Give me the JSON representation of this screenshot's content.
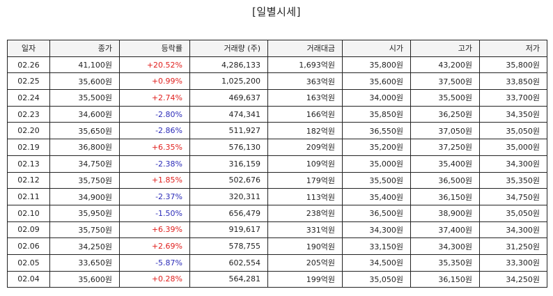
{
  "title": "[일별시세]",
  "colors": {
    "up": "#e0201e",
    "down": "#2b2bb8"
  },
  "columns": [
    "일자",
    "종가",
    "등락률",
    "거래량 (주)",
    "거래대금",
    "시가",
    "고가",
    "저가"
  ],
  "rows": [
    {
      "date": "02.26",
      "close": "41,100원",
      "change": "+20.52%",
      "dir": "up",
      "volume": "4,286,133",
      "amount": "1,693억원",
      "open": "35,800원",
      "high": "43,200원",
      "low": "35,800원"
    },
    {
      "date": "02.25",
      "close": "35,600원",
      "change": "+0.99%",
      "dir": "up",
      "volume": "1,025,200",
      "amount": "363억원",
      "open": "35,600원",
      "high": "37,500원",
      "low": "33,850원"
    },
    {
      "date": "02.24",
      "close": "35,500원",
      "change": "+2.74%",
      "dir": "up",
      "volume": "469,637",
      "amount": "163억원",
      "open": "34,000원",
      "high": "35,500원",
      "low": "33,700원"
    },
    {
      "date": "02.23",
      "close": "34,600원",
      "change": "-2.80%",
      "dir": "down",
      "volume": "474,341",
      "amount": "166억원",
      "open": "35,850원",
      "high": "36,250원",
      "low": "34,350원"
    },
    {
      "date": "02.20",
      "close": "35,650원",
      "change": "-2.86%",
      "dir": "down",
      "volume": "511,927",
      "amount": "182억원",
      "open": "36,550원",
      "high": "37,050원",
      "low": "35,050원"
    },
    {
      "date": "02.19",
      "close": "36,800원",
      "change": "+6.35%",
      "dir": "up",
      "volume": "576,130",
      "amount": "209억원",
      "open": "35,200원",
      "high": "37,250원",
      "low": "35,000원"
    },
    {
      "date": "02.13",
      "close": "34,750원",
      "change": "-2.38%",
      "dir": "down",
      "volume": "316,159",
      "amount": "109억원",
      "open": "35,000원",
      "high": "35,400원",
      "low": "34,300원"
    },
    {
      "date": "02.12",
      "close": "35,750원",
      "change": "+1.85%",
      "dir": "up",
      "volume": "502,676",
      "amount": "179억원",
      "open": "35,500원",
      "high": "36,500원",
      "low": "35,350원"
    },
    {
      "date": "02.11",
      "close": "34,900원",
      "change": "-2.37%",
      "dir": "down",
      "volume": "320,311",
      "amount": "113억원",
      "open": "35,400원",
      "high": "36,150원",
      "low": "34,750원"
    },
    {
      "date": "02.10",
      "close": "35,950원",
      "change": "-1.50%",
      "dir": "down",
      "volume": "656,479",
      "amount": "238억원",
      "open": "36,500원",
      "high": "38,900원",
      "low": "35,050원"
    },
    {
      "date": "02.09",
      "close": "35,750원",
      "change": "+6.39%",
      "dir": "up",
      "volume": "919,617",
      "amount": "331억원",
      "open": "34,300원",
      "high": "37,400원",
      "low": "34,300원"
    },
    {
      "date": "02.06",
      "close": "34,250원",
      "change": "+2.69%",
      "dir": "up",
      "volume": "578,755",
      "amount": "190억원",
      "open": "33,150원",
      "high": "34,300원",
      "low": "31,250원"
    },
    {
      "date": "02.05",
      "close": "33,650원",
      "change": "-5.87%",
      "dir": "down",
      "volume": "602,554",
      "amount": "205억원",
      "open": "34,500원",
      "high": "35,350원",
      "low": "33,300원"
    },
    {
      "date": "02.04",
      "close": "35,600원",
      "change": "+0.28%",
      "dir": "up",
      "volume": "564,281",
      "amount": "199억원",
      "open": "35,050원",
      "high": "36,150원",
      "low": "34,250원"
    }
  ]
}
